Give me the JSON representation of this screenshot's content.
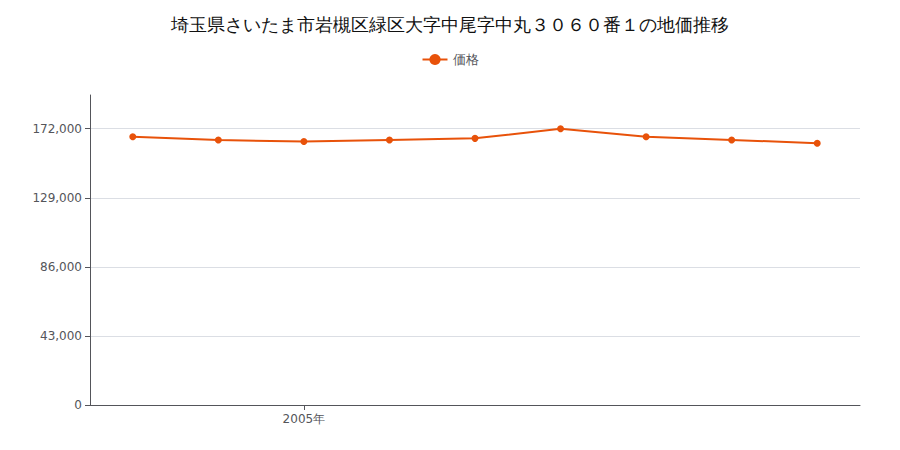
{
  "chart_data": {
    "type": "line",
    "title": "埼玉県さいたま市岩槻区緑区大字中尾字中丸３０６０番１の地価推移",
    "x": [
      2003,
      2004,
      2005,
      2006,
      2007,
      2008,
      2009,
      2010,
      2011
    ],
    "series": [
      {
        "name": "価格",
        "color": "#e8520a",
        "marker": "circle",
        "values": [
          167000,
          165000,
          164000,
          165000,
          166000,
          172000,
          167000,
          165000,
          163000
        ]
      }
    ],
    "xlim": [
      2002.5,
      2011.5
    ],
    "xticks": [
      {
        "value": 2005,
        "label": "2005年"
      }
    ],
    "ylim": [
      0,
      193000
    ],
    "yticks": [
      0,
      {
        "value": 43000,
        "label": "43,000"
      },
      {
        "value": 86000,
        "label": "86,000"
      },
      {
        "value": 129000,
        "label": "129,000"
      },
      {
        "value": 172000,
        "label": "172,000"
      }
    ],
    "grid": "y",
    "legend": "top"
  }
}
